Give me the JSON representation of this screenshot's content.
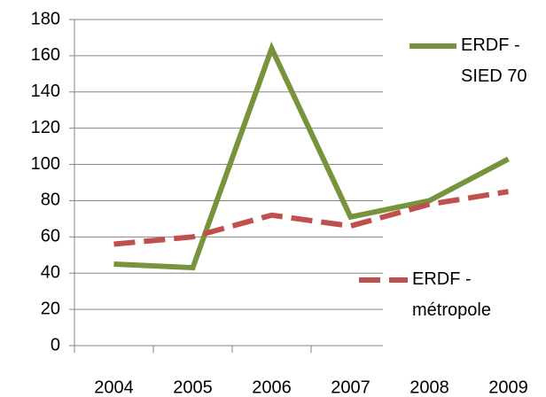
{
  "chart_data": {
    "type": "line",
    "categories": [
      "2004",
      "2005",
      "2006",
      "2007",
      "2008",
      "2009"
    ],
    "series": [
      {
        "name": "ERDF - SIED 70",
        "color": "#77933c",
        "dashed": false,
        "values": [
          45,
          43,
          164,
          71,
          80,
          103
        ]
      },
      {
        "name": "ERDF - métropole",
        "color": "#c0504d",
        "dashed": true,
        "values": [
          56,
          60,
          72,
          66,
          78,
          85
        ]
      }
    ],
    "ylim": [
      0,
      180
    ],
    "yticks": [
      0,
      20,
      40,
      60,
      80,
      100,
      120,
      140,
      160,
      180
    ],
    "grid": true
  }
}
